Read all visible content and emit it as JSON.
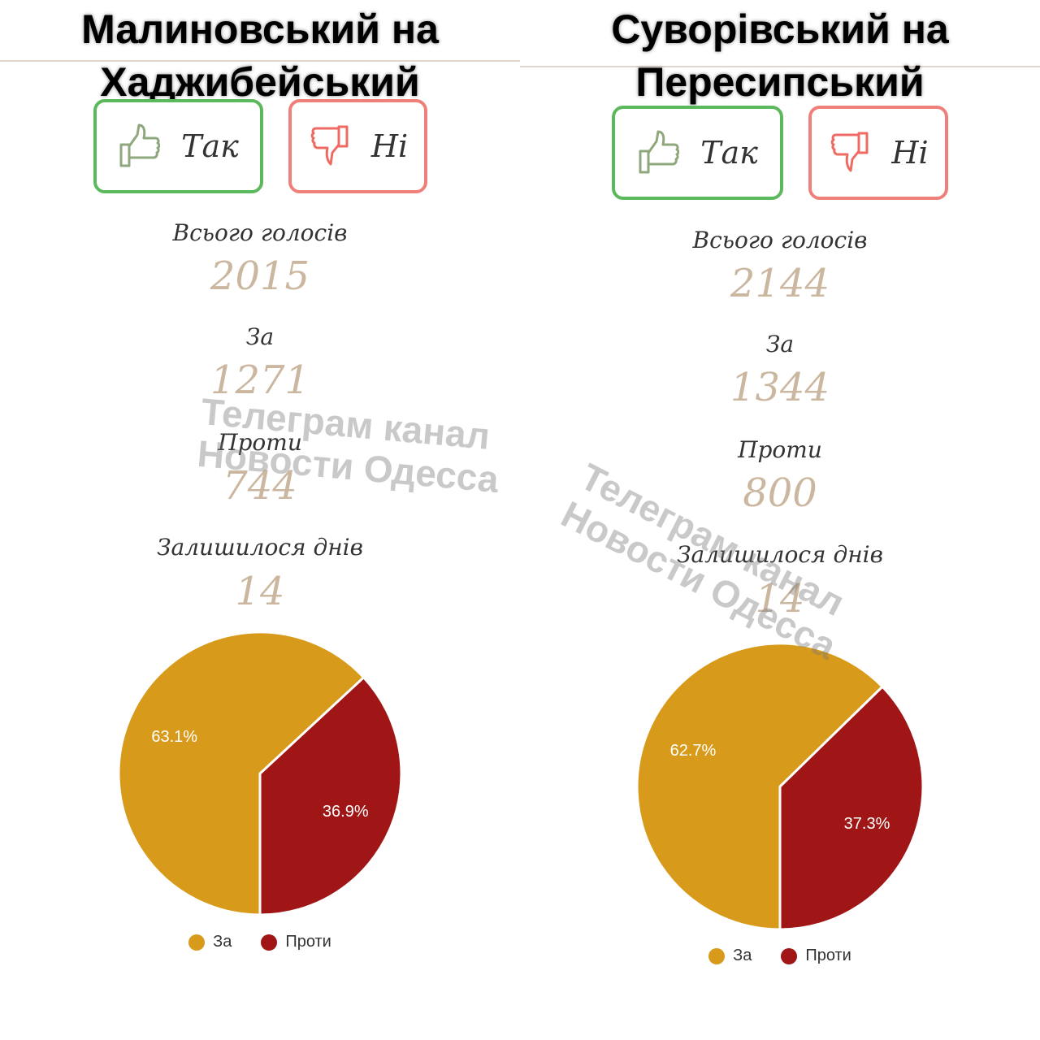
{
  "colors": {
    "za": "#d89a1a",
    "proty": "#a01515",
    "value": "#cbb79f",
    "yes_border": "#5cb85c",
    "no_border": "#ee8079"
  },
  "labels": {
    "total": "Всього голосів",
    "za": "За",
    "proty": "Проти",
    "days_left": "Залишилося днів",
    "yes": "Так",
    "no": "Ні"
  },
  "watermark": {
    "line1": "Телеграм канал",
    "line2": "Новости Одесса"
  },
  "panels": [
    {
      "title_line1": "Малиновський на",
      "title_line2": "Хаджибейський",
      "total": "2015",
      "za": "1271",
      "proty": "744",
      "days_left": "14"
    },
    {
      "title_line1": "Суворівський на",
      "title_line2": "Пересипський",
      "total": "2144",
      "za": "1344",
      "proty": "800",
      "days_left": "14"
    }
  ],
  "chart_data": [
    {
      "type": "pie",
      "categories": [
        "За",
        "Проти"
      ],
      "values": [
        63.1,
        36.9
      ],
      "data_labels": [
        "63.1%",
        "36.9%"
      ],
      "legend": "bottom",
      "colors": [
        "#d89a1a",
        "#a01515"
      ]
    },
    {
      "type": "pie",
      "categories": [
        "За",
        "Проти"
      ],
      "values": [
        62.7,
        37.3
      ],
      "data_labels": [
        "62.7%",
        "37.3%"
      ],
      "legend": "bottom",
      "colors": [
        "#d89a1a",
        "#a01515"
      ]
    }
  ]
}
